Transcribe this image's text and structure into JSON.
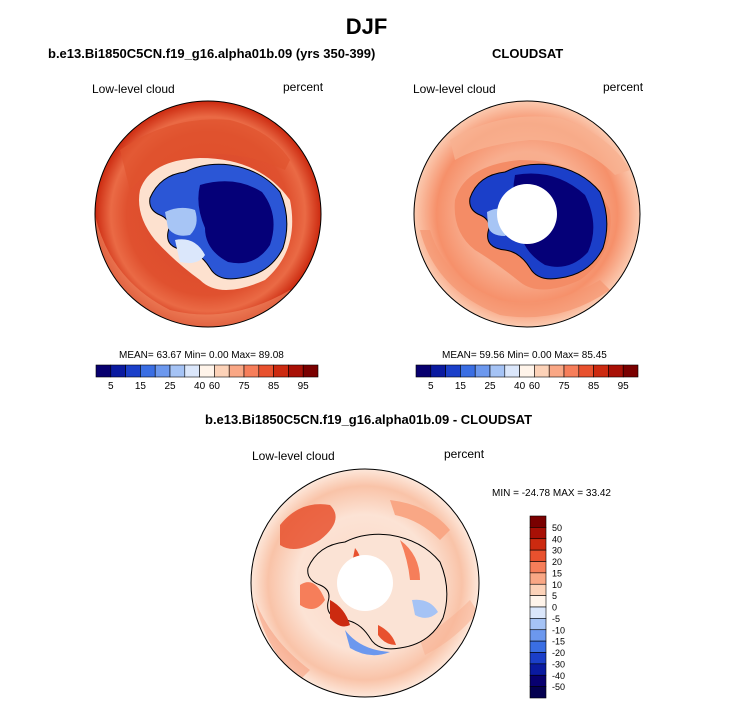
{
  "page_title": "DJF",
  "panels": [
    {
      "title": "b.e13.Bi1850C5CN.f19_g16.alpha01b.09 (yrs 350-399)",
      "left_label": "Low-level cloud",
      "right_label": "percent",
      "stats": "MEAN=  63.67  Min=   0.00  Max=  89.08"
    },
    {
      "title": "CLOUDSAT",
      "left_label": "Low-level cloud",
      "right_label": "percent",
      "stats": "MEAN=  59.56  Min=   0.00  Max=  85.45"
    },
    {
      "title": "b.e13.Bi1850C5CN.f19_g16.alpha01b.09 - CLOUDSAT",
      "left_label": "Low-level cloud",
      "right_label": "percent",
      "stats": "MIN = -24.78 MAX =  33.42"
    }
  ],
  "chart_data": [
    {
      "type": "heatmap",
      "projection": "south-polar-stereographic",
      "title": "b.e13.Bi1850C5CN.f19_g16.alpha01b.09 (yrs 350-399)",
      "variable": "Low-level cloud",
      "units": "percent",
      "mean": 63.67,
      "min": 0.0,
      "max": 89.08,
      "colorbar_labels": [
        "5",
        "15",
        "25",
        "40",
        "60",
        "75",
        "85",
        "95"
      ],
      "colorbar_colors": [
        "#08006f",
        "#0a1aa0",
        "#1b3fc9",
        "#3a6ee3",
        "#6c98ee",
        "#a5c3f5",
        "#dbe7fb",
        "#fff4ea",
        "#fcd2b8",
        "#f9a785",
        "#f67e5a",
        "#e8512e",
        "#cc2a10",
        "#a81006",
        "#7a0000"
      ]
    },
    {
      "type": "heatmap",
      "projection": "south-polar-stereographic",
      "title": "CLOUDSAT",
      "variable": "Low-level cloud",
      "units": "percent",
      "mean": 59.56,
      "min": 0.0,
      "max": 85.45,
      "colorbar_labels": [
        "5",
        "15",
        "25",
        "40",
        "60",
        "75",
        "85",
        "95"
      ],
      "colorbar_colors": [
        "#08006f",
        "#0a1aa0",
        "#1b3fc9",
        "#3a6ee3",
        "#6c98ee",
        "#a5c3f5",
        "#dbe7fb",
        "#fff4ea",
        "#fcd2b8",
        "#f9a785",
        "#f67e5a",
        "#e8512e",
        "#cc2a10",
        "#a81006",
        "#7a0000"
      ]
    },
    {
      "type": "heatmap",
      "projection": "south-polar-stereographic",
      "title": "b.e13.Bi1850C5CN.f19_g16.alpha01b.09 - CLOUDSAT",
      "variable": "Low-level cloud",
      "units": "percent",
      "min": -24.78,
      "max": 33.42,
      "colorbar_labels": [
        "50",
        "40",
        "30",
        "20",
        "15",
        "10",
        "5",
        "0",
        "-5",
        "-10",
        "-15",
        "-20",
        "-30",
        "-40",
        "-50"
      ],
      "colorbar_colors": [
        "#7a0000",
        "#a81006",
        "#cc2a10",
        "#e8512e",
        "#f67e5a",
        "#f9a785",
        "#fcd2b8",
        "#fff4ea",
        "#dbe7fb",
        "#a5c3f5",
        "#6c98ee",
        "#3a6ee3",
        "#1b3fc9",
        "#0a1aa0",
        "#08006f",
        "#040050"
      ]
    }
  ]
}
